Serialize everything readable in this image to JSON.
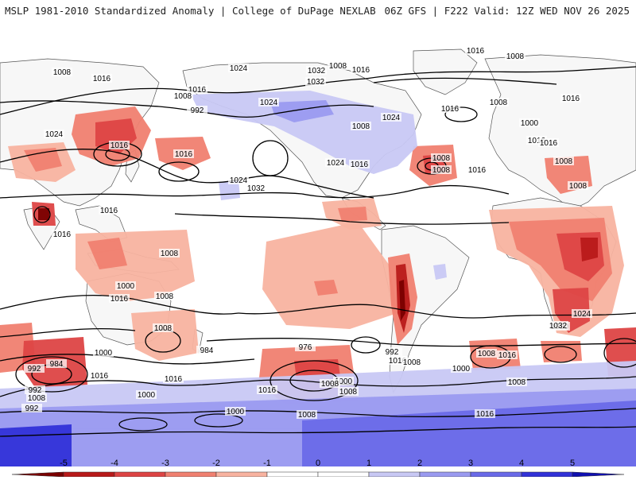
{
  "header": {
    "left": "MSLP 1981-2010 Standardized Anomaly | College of DuPage NEXLAB",
    "right": "06Z GFS | F222 Valid: 12Z WED NOV 26 2025"
  },
  "colors": {
    "ocean": "#ffffff",
    "land": "#f7f7f7",
    "coast": "#555555",
    "neg1": "#f8b3a0",
    "neg2": "#f08070",
    "neg3": "#dd4444",
    "neg4": "#b81a1a",
    "neg5": "#7a0000",
    "pos1": "#c8c8f4",
    "pos2": "#9a9af0",
    "pos3": "#6a6ae8",
    "pos4": "#3232d8",
    "pos5": "#1010b0",
    "contour": "#000000"
  },
  "anomaly_regions": [
    {
      "name": "siberia-low",
      "level": -2,
      "lon": 95,
      "lat": 52
    },
    {
      "name": "siberia-low-core",
      "level": -3,
      "lon": 100,
      "lat": 50
    },
    {
      "name": "china-neg",
      "level": -2,
      "lon": 75,
      "lat": 38
    },
    {
      "name": "india-low",
      "level": -4,
      "lon": 85,
      "lat": 20
    },
    {
      "name": "kamchatka-low",
      "level": -2,
      "lon": 150,
      "lat": 48
    },
    {
      "name": "maritime-neg",
      "level": -1,
      "lon": 120,
      "lat": 2
    },
    {
      "name": "australia-neg",
      "level": -1,
      "lon": 130,
      "lat": -20
    },
    {
      "name": "central-pacific-neg",
      "level": -1,
      "lon": -150,
      "lat": -10
    },
    {
      "name": "south-america-andes",
      "level": -3,
      "lon": -70,
      "lat": -25
    },
    {
      "name": "africa-neg",
      "level": -2,
      "lon": 25,
      "lat": 0
    },
    {
      "name": "africa-neg-core",
      "level": -3,
      "lon": 30,
      "lat": -15
    },
    {
      "name": "atlantic-low",
      "level": -3,
      "lon": -55,
      "lat": 45
    },
    {
      "name": "iran-low",
      "level": -2,
      "lon": 50,
      "lat": 40
    },
    {
      "name": "southern-ocean-low-west",
      "level": -3,
      "lon": 105,
      "lat": -45
    },
    {
      "name": "southern-ocean-low-pacific",
      "level": -3,
      "lon": -140,
      "lat": -50
    },
    {
      "name": "southern-ocean-low-atlantic",
      "level": -2,
      "lon": -15,
      "lat": -48
    },
    {
      "name": "canada-high",
      "level": 1,
      "lon": -110,
      "lat": 55
    },
    {
      "name": "arctic-high",
      "level": 2,
      "lon": -40,
      "lat": 72
    },
    {
      "name": "antarctic-high",
      "level": 2,
      "lon": 0,
      "lat": -65
    }
  ],
  "isobar_labels": [
    "1008",
    "1016",
    "1024",
    "1032",
    "1008",
    "1016",
    "1016",
    "1008",
    "1032",
    "1024",
    "1016",
    "1008",
    "992",
    "1024",
    "1016",
    "1016",
    "1024",
    "1032",
    "1024",
    "1008",
    "1016",
    "1024",
    "1016",
    "1008",
    "1008",
    "1000",
    "1016",
    "1016",
    "1008",
    "1016",
    "1016",
    "1008",
    "1008",
    "1016",
    "1016",
    "1008",
    "1000",
    "1016",
    "1008",
    "1008",
    "1000",
    "992",
    "984",
    "1000",
    "992",
    "984",
    "976",
    "1000",
    "992",
    "1016",
    "1008",
    "1000",
    "1008",
    "1016",
    "1008",
    "1032",
    "1024",
    "992",
    "1016",
    "1008",
    "1000",
    "1016",
    "1016",
    "1008",
    "1008",
    "1000",
    "1008",
    "1016"
  ],
  "legend": {
    "ticks": [
      "-5",
      "-4",
      "-3",
      "-2",
      "-1",
      "0",
      "1",
      "2",
      "3",
      "4",
      "5"
    ]
  }
}
